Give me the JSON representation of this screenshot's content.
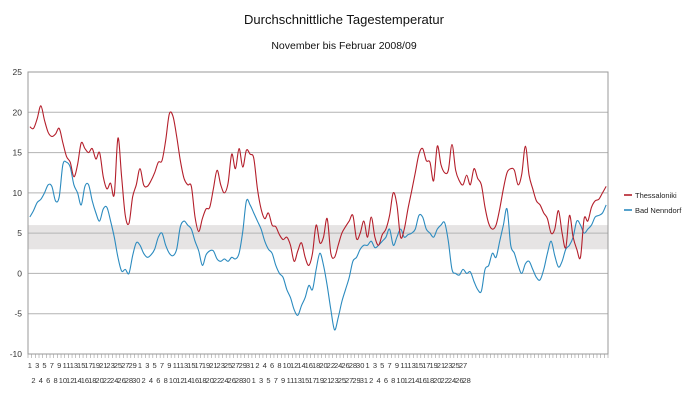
{
  "chart_data": {
    "type": "line",
    "title": "Durchschnittliche Tagestemperatur",
    "subtitle": "November bis Februar 2008/09",
    "xlabel": "",
    "ylabel": "",
    "ylim": [
      -10,
      25
    ],
    "y_ticks": [
      -10,
      -5,
      0,
      5,
      10,
      15,
      20,
      25
    ],
    "grid": true,
    "legend_position": "right",
    "band": {
      "from": 3,
      "to": 6,
      "color": "#e6e4e4"
    },
    "x_tick_labels": {
      "Nov": [
        1,
        2,
        3,
        4,
        5,
        6,
        7,
        8,
        9,
        10,
        11,
        12,
        13,
        14,
        15,
        16,
        17,
        18,
        19,
        20,
        21,
        22,
        23,
        24,
        25,
        26,
        27,
        28,
        29,
        30
      ],
      "Dez": [
        1,
        2,
        3,
        4,
        5,
        6,
        7,
        8,
        9,
        10,
        11,
        12,
        13,
        14,
        15,
        16,
        17,
        18,
        19,
        20,
        21,
        22,
        23,
        24,
        25,
        26,
        27,
        28,
        29,
        30,
        31
      ],
      "Jan": [
        1,
        2,
        3,
        4,
        5,
        6,
        7,
        8,
        9,
        10,
        11,
        12,
        13,
        14,
        15,
        16,
        17,
        18,
        19,
        20,
        21,
        22,
        23,
        24,
        25,
        26,
        27,
        28,
        29,
        30,
        31
      ],
      "Feb": [
        1,
        2,
        3,
        4,
        5,
        6,
        7,
        8,
        9,
        10,
        11,
        12,
        13,
        14,
        15,
        16,
        17,
        18,
        19,
        20,
        21,
        22,
        23,
        24,
        25,
        26,
        27,
        28
      ]
    },
    "series": [
      {
        "name": "Thessaloniki",
        "color": "#b41f2b",
        "values": [
          18.2,
          18.0,
          19.2,
          20.8,
          19.0,
          17.5,
          17.0,
          17.3,
          18.0,
          16.2,
          14.5,
          13.8,
          12.0,
          13.5,
          16.2,
          15.5,
          15.0,
          15.5,
          14.2,
          15.0,
          12.0,
          10.5,
          11.2,
          9.8,
          16.8,
          12.0,
          7.2,
          6.2,
          9.5,
          11.0,
          13.0,
          11.0,
          10.8,
          11.5,
          12.5,
          13.8,
          14.0,
          16.5,
          19.8,
          19.5,
          17.0,
          14.0,
          11.8,
          11.0,
          10.8,
          7.0,
          5.2,
          6.8,
          8.0,
          8.2,
          10.5,
          12.8,
          11.0,
          10.0,
          11.2,
          14.8,
          13.0,
          15.5,
          13.2,
          15.3,
          14.8,
          14.3,
          10.5,
          8.0,
          6.8,
          7.5,
          6.0,
          5.8,
          4.8,
          4.2,
          4.5,
          3.5,
          1.5,
          2.8,
          3.8,
          2.0,
          1.0,
          2.5,
          6.0,
          3.8,
          4.5,
          6.8,
          2.5,
          2.0,
          3.5,
          5.0,
          5.8,
          6.5,
          7.2,
          4.3,
          5.0,
          6.5,
          4.5,
          7.0,
          4.5,
          3.5,
          4.8,
          5.5,
          7.2,
          10.0,
          8.5,
          4.5,
          5.5,
          8.0,
          10.2,
          12.5,
          14.8,
          15.5,
          14.0,
          13.8,
          11.5,
          15.8,
          13.5,
          12.5,
          12.8,
          16.0,
          12.8,
          11.5,
          11.0,
          12.2,
          11.0,
          13.0,
          11.8,
          11.0,
          8.2,
          6.2,
          5.5,
          6.0,
          8.0,
          10.5,
          12.5,
          13.0,
          12.8,
          11.0,
          12.3,
          15.8,
          12.2,
          10.5,
          9.0,
          8.5,
          7.5,
          6.8,
          5.0,
          5.5,
          7.8,
          5.0,
          3.2,
          7.2,
          4.5,
          3.0,
          2.0,
          6.8,
          6.5,
          8.2,
          9.0,
          9.2,
          10.0,
          10.8
        ]
      },
      {
        "name": "Bad Nenndorf",
        "color": "#2c8bbf",
        "values": [
          7.0,
          7.8,
          8.8,
          9.2,
          10.0,
          11.0,
          10.8,
          9.0,
          9.5,
          13.5,
          13.8,
          13.2,
          11.0,
          10.0,
          8.5,
          10.8,
          11.0,
          9.0,
          7.5,
          6.5,
          8.0,
          8.2,
          6.5,
          4.5,
          2.0,
          0.3,
          0.5,
          0.0,
          2.2,
          3.8,
          3.5,
          2.5,
          2.0,
          2.3,
          3.0,
          4.5,
          5.0,
          3.5,
          2.5,
          2.2,
          3.0,
          5.8,
          6.5,
          6.0,
          5.5,
          4.0,
          2.8,
          1.0,
          2.3,
          2.8,
          2.8,
          1.8,
          1.5,
          1.8,
          1.5,
          2.0,
          1.8,
          2.5,
          5.2,
          9.0,
          8.5,
          7.5,
          6.5,
          5.5,
          4.0,
          3.0,
          2.5,
          1.0,
          0.0,
          -0.5,
          -2.0,
          -3.0,
          -4.5,
          -5.2,
          -4.0,
          -3.0,
          -1.5,
          -2.0,
          0.5,
          2.5,
          1.0,
          -1.5,
          -4.5,
          -7.0,
          -5.5,
          -3.5,
          -2.0,
          -0.5,
          1.5,
          2.0,
          3.0,
          3.5,
          3.5,
          4.0,
          3.2,
          3.5,
          4.0,
          4.5,
          5.5,
          3.5,
          4.5,
          5.5,
          4.5,
          4.8,
          5.0,
          5.5,
          7.2,
          7.0,
          5.5,
          5.0,
          4.5,
          5.5,
          6.0,
          6.3,
          4.0,
          0.5,
          0.0,
          -0.2,
          0.5,
          0.0,
          0.2,
          -1.0,
          -2.0,
          -2.2,
          0.5,
          1.0,
          2.5,
          2.0,
          4.0,
          6.0,
          8.0,
          3.5,
          2.5,
          1.0,
          0.0,
          1.2,
          1.5,
          0.5,
          -0.5,
          -0.8,
          0.5,
          2.5,
          4.0,
          2.2,
          0.8,
          1.5,
          3.0,
          3.5,
          4.5,
          6.5,
          6.0,
          5.0,
          5.5,
          6.0,
          7.0,
          7.2,
          7.5,
          8.5
        ]
      }
    ]
  }
}
